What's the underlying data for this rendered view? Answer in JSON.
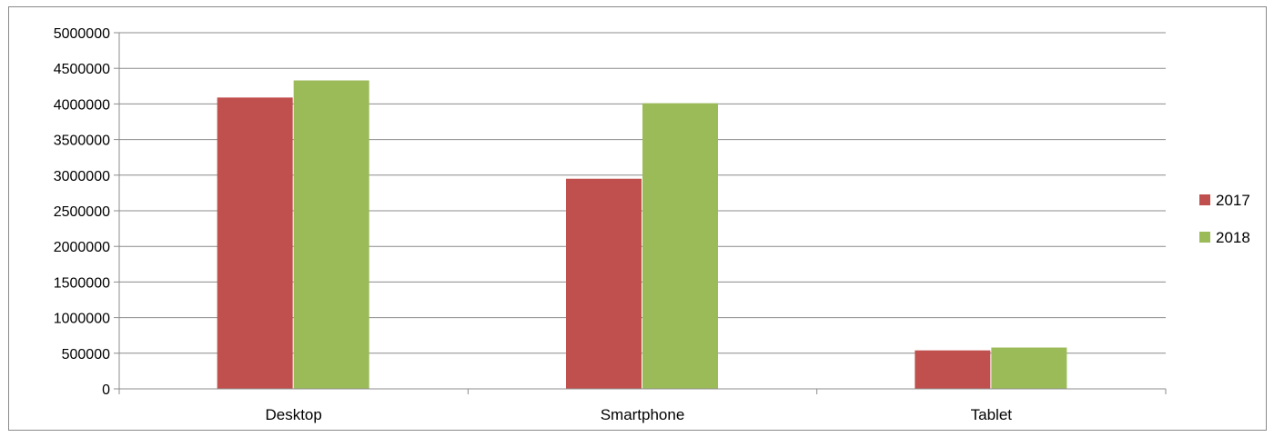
{
  "chart_data": {
    "type": "bar",
    "title": "",
    "xlabel": "",
    "ylabel": "",
    "categories": [
      "Desktop",
      "Smartphone",
      "Tablet"
    ],
    "series": [
      {
        "name": "2017",
        "values": [
          4090000,
          2950000,
          540000
        ],
        "color": "#c0504d"
      },
      {
        "name": "2018",
        "values": [
          4330000,
          4010000,
          580000
        ],
        "color": "#9bbb59"
      }
    ],
    "ylim": [
      0,
      5000000
    ],
    "yticks": [
      "0",
      "500000",
      "1000000",
      "1500000",
      "2000000",
      "2500000",
      "3000000",
      "3500000",
      "4000000",
      "4500000",
      "5000000"
    ],
    "grid": true,
    "legend_position": "right"
  }
}
